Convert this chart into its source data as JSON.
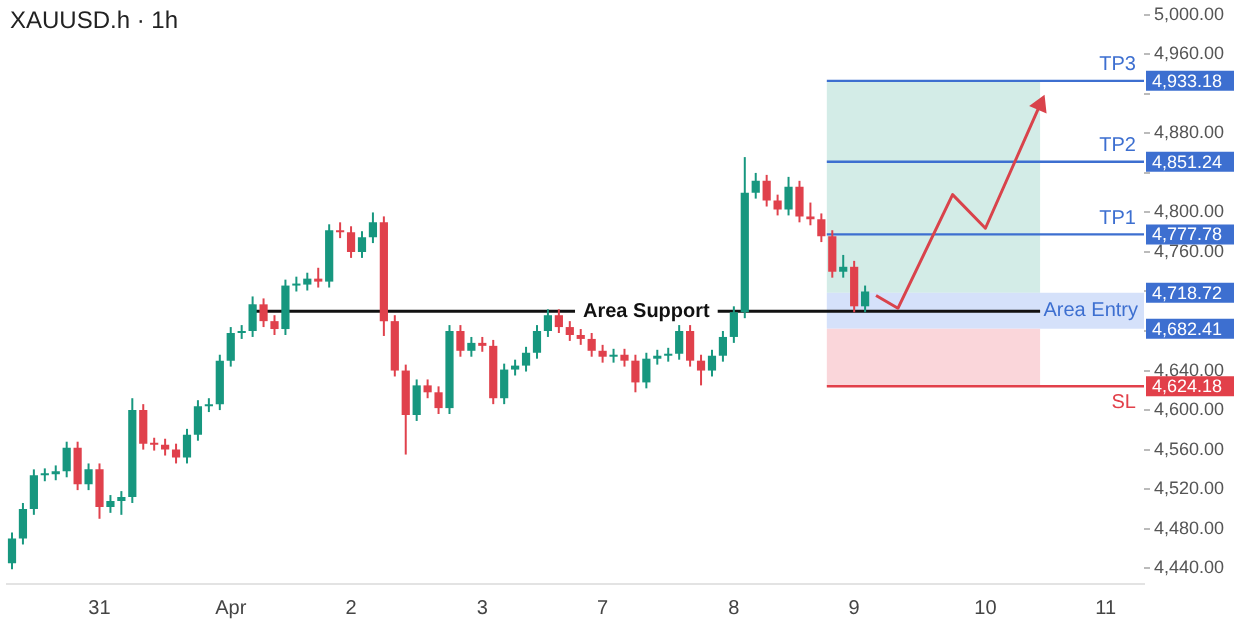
{
  "chart_data": {
    "type": "candlestick",
    "title": "XAUUSD.h · 1h",
    "categories": [
      null,
      null,
      null,
      null,
      null,
      null,
      null,
      null,
      "31",
      null,
      null,
      null,
      null,
      null,
      null,
      null,
      null,
      null,
      null,
      null,
      "Apr",
      null,
      null,
      null,
      null,
      null,
      null,
      null,
      null,
      null,
      null,
      "2",
      null,
      null,
      null,
      null,
      null,
      null,
      null,
      null,
      null,
      null,
      null,
      "3",
      null,
      null,
      null,
      null,
      null,
      null,
      null,
      null,
      null,
      null,
      "7",
      null,
      null,
      null,
      null,
      null,
      null,
      null,
      null,
      null,
      null,
      null,
      "8",
      null,
      null,
      null,
      null,
      null,
      null,
      null,
      null,
      null,
      null,
      "9",
      null,
      null,
      null,
      null,
      null,
      null,
      null,
      null,
      null,
      null,
      null,
      "10",
      null,
      null,
      null,
      null,
      null,
      null,
      null,
      null,
      null,
      null,
      "11",
      null,
      null,
      null
    ],
    "ohlc": [
      [
        4445,
        4476,
        4439,
        4470
      ],
      [
        4470,
        4506,
        4464,
        4500
      ],
      [
        4500,
        4540,
        4494,
        4534
      ],
      [
        4534,
        4541,
        4528,
        4535
      ],
      [
        4535,
        4544,
        4529,
        4538
      ],
      [
        4538,
        4568,
        4532,
        4562
      ],
      [
        4562,
        4568,
        4519,
        4525
      ],
      [
        4525,
        4546,
        4519,
        4540
      ],
      [
        4540,
        4546,
        4490,
        4502
      ],
      [
        4502,
        4514,
        4496,
        4508
      ],
      [
        4508,
        4518,
        4494,
        4512
      ],
      [
        4512,
        4612,
        4506,
        4600
      ],
      [
        4600,
        4606,
        4560,
        4566
      ],
      [
        4566,
        4572,
        4559,
        4565
      ],
      [
        4565,
        4571,
        4554,
        4560
      ],
      [
        4560,
        4566,
        4546,
        4552
      ],
      [
        4552,
        4581,
        4546,
        4575
      ],
      [
        4575,
        4610,
        4569,
        4604
      ],
      [
        4604,
        4612,
        4598,
        4606
      ],
      [
        4606,
        4656,
        4600,
        4650
      ],
      [
        4650,
        4684,
        4644,
        4678
      ],
      [
        4678,
        4686,
        4672,
        4680
      ],
      [
        4680,
        4715,
        4674,
        4707
      ],
      [
        4707,
        4713,
        4684,
        4690
      ],
      [
        4690,
        4696,
        4676,
        4682
      ],
      [
        4682,
        4732,
        4676,
        4726
      ],
      [
        4726,
        4735,
        4720,
        4727
      ],
      [
        4727,
        4739,
        4721,
        4733
      ],
      [
        4733,
        4744,
        4724,
        4730
      ],
      [
        4730,
        4788,
        4724,
        4782
      ],
      [
        4782,
        4790,
        4774,
        4780
      ],
      [
        4780,
        4786,
        4754,
        4760
      ],
      [
        4760,
        4781,
        4754,
        4775
      ],
      [
        4775,
        4800,
        4769,
        4790
      ],
      [
        4790,
        4796,
        4675,
        4690
      ],
      [
        4690,
        4696,
        4634,
        4640
      ],
      [
        4640,
        4646,
        4555,
        4595
      ],
      [
        4595,
        4631,
        4589,
        4625
      ],
      [
        4625,
        4631,
        4612,
        4618
      ],
      [
        4618,
        4624,
        4596,
        4602
      ],
      [
        4602,
        4686,
        4596,
        4680
      ],
      [
        4680,
        4686,
        4654,
        4660
      ],
      [
        4660,
        4674,
        4654,
        4668
      ],
      [
        4668,
        4674,
        4659,
        4665
      ],
      [
        4665,
        4671,
        4606,
        4612
      ],
      [
        4612,
        4647,
        4606,
        4641
      ],
      [
        4641,
        4651,
        4635,
        4645
      ],
      [
        4645,
        4664,
        4639,
        4658
      ],
      [
        4658,
        4686,
        4652,
        4680
      ],
      [
        4680,
        4702,
        4674,
        4696
      ],
      [
        4696,
        4702,
        4678,
        4684
      ],
      [
        4684,
        4690,
        4670,
        4676
      ],
      [
        4676,
        4682,
        4666,
        4672
      ],
      [
        4672,
        4678,
        4654,
        4660
      ],
      [
        4660,
        4666,
        4648,
        4654
      ],
      [
        4654,
        4662,
        4648,
        4656
      ],
      [
        4656,
        4662,
        4644,
        4650
      ],
      [
        4650,
        4656,
        4618,
        4628
      ],
      [
        4628,
        4658,
        4622,
        4652
      ],
      [
        4652,
        4661,
        4646,
        4655
      ],
      [
        4655,
        4663,
        4649,
        4657
      ],
      [
        4657,
        4686,
        4651,
        4680
      ],
      [
        4680,
        4686,
        4644,
        4650
      ],
      [
        4650,
        4656,
        4625,
        4640
      ],
      [
        4640,
        4661,
        4634,
        4655
      ],
      [
        4655,
        4680,
        4649,
        4674
      ],
      [
        4674,
        4705,
        4668,
        4699
      ],
      [
        4699,
        4856,
        4693,
        4820
      ],
      [
        4820,
        4840,
        4814,
        4832
      ],
      [
        4832,
        4838,
        4806,
        4812
      ],
      [
        4812,
        4818,
        4797,
        4803
      ],
      [
        4803,
        4836,
        4797,
        4826
      ],
      [
        4826,
        4832,
        4790,
        4796
      ],
      [
        4796,
        4810,
        4787,
        4793
      ],
      [
        4793,
        4799,
        4770,
        4776
      ],
      [
        4776,
        4782,
        4734,
        4740
      ],
      [
        4740,
        4757,
        4734,
        4745
      ],
      [
        4745,
        4751,
        4699,
        4705
      ],
      [
        4705,
        4726,
        4699,
        4720
      ],
      null,
      null,
      null,
      null,
      null,
      null,
      null,
      null,
      null,
      null,
      null,
      null,
      null,
      null,
      null,
      null,
      null,
      null,
      null,
      null,
      null,
      null,
      null,
      null,
      null
    ],
    "ylim": [
      4424,
      5000
    ],
    "yticks": [
      {
        "value": 4440,
        "label": "4,440.00"
      },
      {
        "value": 4480,
        "label": "4,480.00"
      },
      {
        "value": 4520,
        "label": "4,520.00"
      },
      {
        "value": 4560,
        "label": "4,560.00"
      },
      {
        "value": 4600,
        "label": "4,600.00"
      },
      {
        "value": 4640,
        "label": "4,640.00"
      },
      {
        "value": 4680,
        "label": null
      },
      {
        "value": 4720,
        "label": null
      },
      {
        "value": 4760,
        "label": "4,760.00"
      },
      {
        "value": 4800,
        "label": "4,800.00"
      },
      {
        "value": 4840,
        "label": null
      },
      {
        "value": 4880,
        "label": "4,880.00"
      },
      {
        "value": 4920,
        "label": null
      },
      {
        "value": 4960,
        "label": "4,960.00"
      },
      {
        "value": 5000,
        "label": "5,000.00"
      }
    ],
    "ref_lines": [
      {
        "axis": "y",
        "value": 4700,
        "label": "Area Support",
        "color": "#111111"
      },
      {
        "axis": "y",
        "value": 4933.18,
        "label": "TP3",
        "color": "#3d6fd0"
      },
      {
        "axis": "y",
        "value": 4851.24,
        "label": "TP2",
        "color": "#3d6fd0"
      },
      {
        "axis": "y",
        "value": 4777.78,
        "label": "TP1",
        "color": "#3d6fd0"
      },
      {
        "axis": "y",
        "value": 4624.18,
        "label": "SL",
        "color": "#e2404a"
      }
    ],
    "bands": [
      {
        "axis": "y",
        "from": 4718.72,
        "to": 4933.18,
        "color": "#d3ece7"
      },
      {
        "axis": "y",
        "from": 4682.41,
        "to": 4718.72,
        "label": "Area Entry",
        "color": "#b9cdf6"
      },
      {
        "axis": "y",
        "from": 4624.18,
        "to": 4682.41,
        "color": "#fad6da"
      }
    ],
    "series": [
      {
        "type": "line",
        "color": "#d9434b",
        "values": [
          null,
          null,
          null,
          null,
          null,
          null,
          null,
          null,
          null,
          null,
          null,
          null,
          null,
          null,
          null,
          null,
          null,
          null,
          null,
          null,
          null,
          null,
          null,
          null,
          null,
          null,
          null,
          null,
          null,
          null,
          null,
          null,
          null,
          null,
          null,
          null,
          null,
          null,
          null,
          null,
          null,
          null,
          null,
          null,
          null,
          null,
          null,
          null,
          null,
          null,
          null,
          null,
          null,
          null,
          null,
          null,
          null,
          null,
          null,
          null,
          null,
          null,
          null,
          null,
          null,
          null,
          null,
          null,
          null,
          null,
          null,
          null,
          null,
          null,
          null,
          null,
          null,
          null,
          null,
          4716,
          null,
          4703,
          null,
          null,
          null,
          null,
          4818,
          null,
          null,
          4784,
          null,
          null,
          null,
          null,
          4909,
          null,
          null,
          null,
          null,
          null,
          null,
          null,
          null,
          null
        ]
      }
    ],
    "annotations": [
      "4,933.18",
      "4,851.24",
      "4,777.78",
      "4,718.72",
      "4,682.41",
      "4,624.18"
    ],
    "marker": "none",
    "grid": false,
    "legend": false
  }
}
